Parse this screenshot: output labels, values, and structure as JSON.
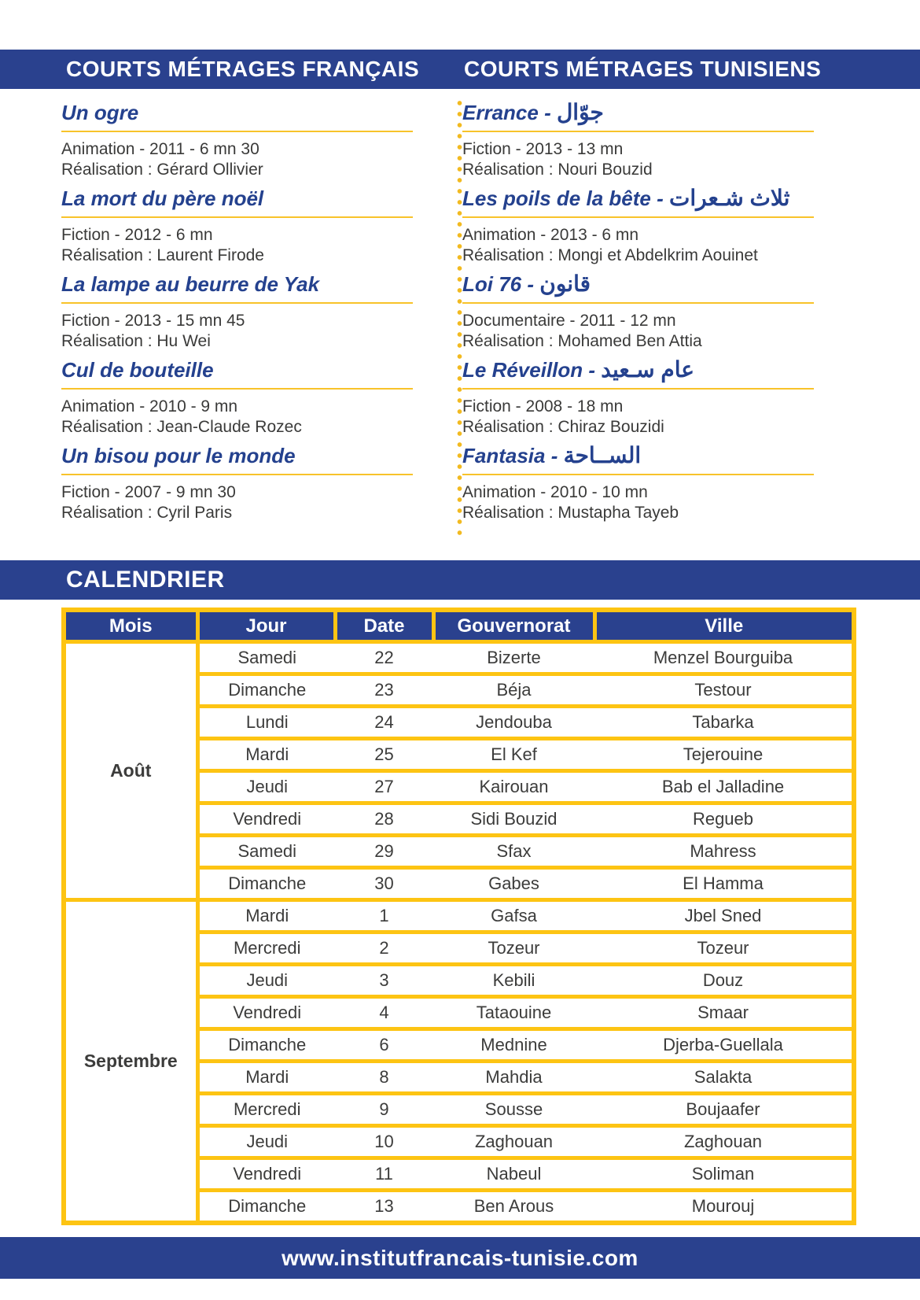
{
  "colors": {
    "brand_blue": "#2a418e",
    "accent_yellow": "#fdc413",
    "underline_yellow": "#f8c32a",
    "text_dark": "#3a3a39"
  },
  "header": {
    "left_title": "COURTS MÉTRAGES FRANÇAIS",
    "right_title": "COURTS MÉTRAGES TUNISIENS"
  },
  "films": {
    "french": [
      {
        "title": "Un ogre",
        "info": "Animation - 2011 - 6 mn 30",
        "director": "Réalisation : Gérard Ollivier"
      },
      {
        "title": "La mort du père noël",
        "info": "Fiction - 2012 - 6 mn",
        "director": "Réalisation : Laurent Firode"
      },
      {
        "title": "La lampe au beurre de Yak",
        "info": "Fiction - 2013 - 15 mn 45",
        "director": "Réalisation : Hu Wei"
      },
      {
        "title": "Cul de bouteille",
        "info": "Animation - 2010 - 9 mn",
        "director": "Réalisation : Jean-Claude Rozec"
      },
      {
        "title": "Un bisou pour le monde",
        "info": "Fiction - 2007 - 9 mn 30",
        "director": "Réalisation : Cyril Paris"
      }
    ],
    "tunisian": [
      {
        "title": "Errance",
        "title_ar": "جوّال",
        "info": "Fiction - 2013 - 13 mn",
        "director": "Réalisation : Nouri Bouzid"
      },
      {
        "title": "Les poils de la bête",
        "title_ar": "ثلاث شـعرات",
        "info": "Animation - 2013 - 6 mn",
        "director": "Réalisation : Mongi et Abdelkrim Aouinet"
      },
      {
        "title": "Loi 76",
        "title_ar": "قانون",
        "info": "Documentaire - 2011 - 12 mn",
        "director": "Réalisation : Mohamed Ben Attia"
      },
      {
        "title": "Le Réveillon",
        "title_ar": "عام سـعيد",
        "info": "Fiction - 2008 - 18 mn",
        "director": "Réalisation : Chiraz Bouzidi"
      },
      {
        "title": "Fantasia",
        "title_ar": "الســاحة",
        "info": "Animation - 2010 - 10 mn",
        "director": "Réalisation : Mustapha Tayeb"
      }
    ]
  },
  "calendar": {
    "banner": "CALENDRIER",
    "columns": [
      "Mois",
      "Jour",
      "Date",
      "Gouvernorat",
      "Ville"
    ],
    "months": [
      {
        "name": "Août",
        "rows": [
          {
            "jour": "Samedi",
            "date": "22",
            "gouvernorat": "Bizerte",
            "ville": "Menzel Bourguiba"
          },
          {
            "jour": "Dimanche",
            "date": "23",
            "gouvernorat": "Béja",
            "ville": "Testour"
          },
          {
            "jour": "Lundi",
            "date": "24",
            "gouvernorat": "Jendouba",
            "ville": "Tabarka"
          },
          {
            "jour": "Mardi",
            "date": "25",
            "gouvernorat": "El Kef",
            "ville": "Tejerouine"
          },
          {
            "jour": "Jeudi",
            "date": "27",
            "gouvernorat": "Kairouan",
            "ville": "Bab el Jalladine"
          },
          {
            "jour": "Vendredi",
            "date": "28",
            "gouvernorat": "Sidi Bouzid",
            "ville": "Regueb"
          },
          {
            "jour": "Samedi",
            "date": "29",
            "gouvernorat": "Sfax",
            "ville": "Mahress"
          },
          {
            "jour": "Dimanche",
            "date": "30",
            "gouvernorat": "Gabes",
            "ville": "El Hamma"
          }
        ]
      },
      {
        "name": "Septembre",
        "rows": [
          {
            "jour": "Mardi",
            "date": "1",
            "gouvernorat": "Gafsa",
            "ville": "Jbel Sned"
          },
          {
            "jour": "Mercredi",
            "date": "2",
            "gouvernorat": "Tozeur",
            "ville": "Tozeur"
          },
          {
            "jour": "Jeudi",
            "date": "3",
            "gouvernorat": "Kebili",
            "ville": "Douz"
          },
          {
            "jour": "Vendredi",
            "date": "4",
            "gouvernorat": "Tataouine",
            "ville": "Smaar"
          },
          {
            "jour": "Dimanche",
            "date": "6",
            "gouvernorat": "Mednine",
            "ville": "Djerba-Guellala"
          },
          {
            "jour": "Mardi",
            "date": "8",
            "gouvernorat": "Mahdia",
            "ville": "Salakta"
          },
          {
            "jour": "Mercredi",
            "date": "9",
            "gouvernorat": "Sousse",
            "ville": "Boujaafer"
          },
          {
            "jour": "Jeudi",
            "date": "10",
            "gouvernorat": "Zaghouan",
            "ville": "Zaghouan"
          },
          {
            "jour": "Vendredi",
            "date": "11",
            "gouvernorat": "Nabeul",
            "ville": "Soliman"
          },
          {
            "jour": "Dimanche",
            "date": "13",
            "gouvernorat": "Ben Arous",
            "ville": "Mourouj"
          }
        ]
      }
    ]
  },
  "footer": {
    "url": "www.institutfrancais-tunisie.com"
  }
}
